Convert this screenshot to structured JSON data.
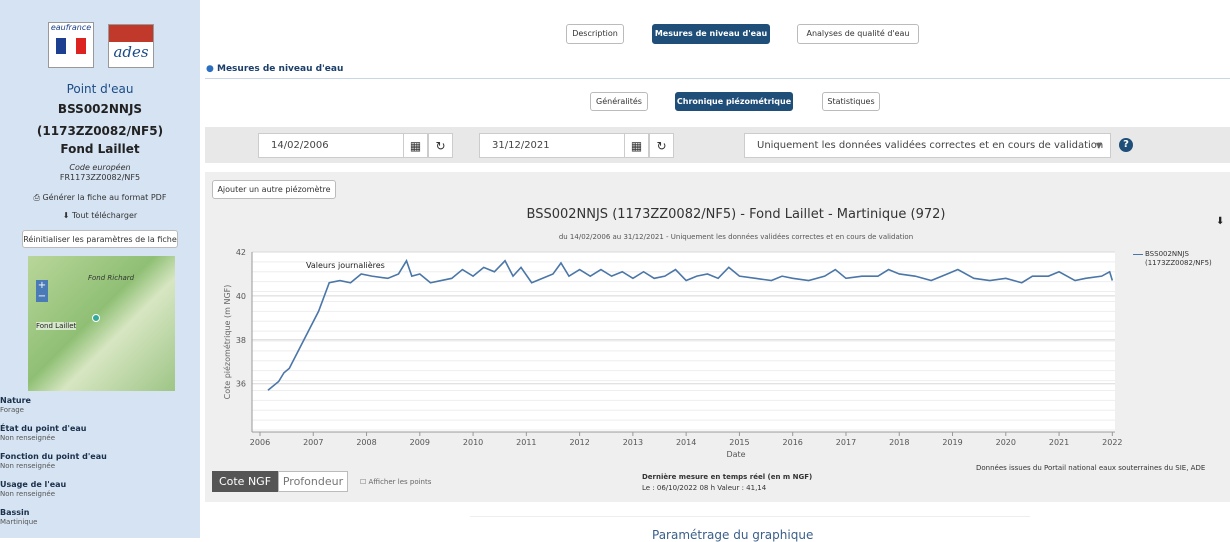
{
  "sidebar": {
    "logo_left": "eaufrance",
    "logo_right": "ades",
    "heading": "Point d'eau",
    "code": "BSS002NNJS",
    "code_alt": "(1173ZZ0082/NF5)",
    "name": "Fond Laillet",
    "euro_label": "Code européen",
    "euro_code": "FR1173ZZ0082/NF5",
    "pdf": "Générer la fiche au format PDF",
    "download": "Tout télécharger",
    "reset": "Réinitialiser les paramètres de la fiche",
    "map_labels": [
      "Fond Richard",
      "Fond Laillet"
    ],
    "properties": [
      {
        "label": "Nature",
        "value": "Forage"
      },
      {
        "label": "État du point d'eau",
        "value": "Non renseignée"
      },
      {
        "label": "Fonction du point d'eau",
        "value": "Non renseignée"
      },
      {
        "label": "Usage de l'eau",
        "value": "Non renseignée"
      },
      {
        "label": "Bassin",
        "value": "Martinique"
      }
    ]
  },
  "tabs": [
    "Description",
    "Mesures de niveau d'eau",
    "Analyses de qualité d'eau"
  ],
  "section": "Mesures de niveau d'eau",
  "subtabs": [
    "Généralités",
    "Chronique piézométrique",
    "Statistiques"
  ],
  "filters": {
    "start": "14/02/2006",
    "end": "31/12/2021",
    "validation": "Uniquement les données validées correctes et en cours de validation"
  },
  "add_button": "Ajouter un autre piézomètre",
  "chart_data": {
    "type": "line",
    "title": "BSS002NNJS (1173ZZ0082/NF5) - Fond Laillet - Martinique (972)",
    "subtitle": "du 14/02/2006 au 31/12/2021 - Uniquement les données validées correctes et en cours de validation",
    "x_label": "Date",
    "y_label": "Cote piézométrique (m NGF)",
    "annotation": "Valeurs journalières",
    "xlim": [
      2005.85,
      2022.05
    ],
    "xticks": [
      2006,
      2007,
      2008,
      2009,
      2010,
      2011,
      2012,
      2013,
      2014,
      2015,
      2016,
      2017,
      2018,
      2019,
      2020,
      2021,
      2022
    ],
    "ylim": [
      33.8,
      42
    ],
    "yticks": [
      36,
      38,
      40,
      42
    ],
    "grid": true,
    "series": [
      {
        "name": "BSS002NNJS (1173ZZ0082/NF5)",
        "color": "#4a76a8",
        "x": [
          2006.15,
          2006.35,
          2006.45,
          2006.55,
          2007.1,
          2007.3,
          2007.5,
          2007.7,
          2007.9,
          2008.1,
          2008.4,
          2008.6,
          2008.75,
          2008.85,
          2009.0,
          2009.2,
          2009.4,
          2009.6,
          2009.8,
          2010.0,
          2010.2,
          2010.4,
          2010.6,
          2010.75,
          2010.9,
          2011.1,
          2011.3,
          2011.5,
          2011.65,
          2011.8,
          2012.0,
          2012.2,
          2012.4,
          2012.6,
          2012.8,
          2013.0,
          2013.2,
          2013.4,
          2013.6,
          2013.8,
          2014.0,
          2014.2,
          2014.4,
          2014.6,
          2014.8,
          2015.0,
          2015.3,
          2015.6,
          2015.8,
          2016.0,
          2016.3,
          2016.6,
          2016.8,
          2017.0,
          2017.3,
          2017.6,
          2017.8,
          2018.0,
          2018.3,
          2018.6,
          2018.9,
          2019.1,
          2019.4,
          2019.7,
          2020.0,
          2020.3,
          2020.5,
          2020.8,
          2021.0,
          2021.3,
          2021.5,
          2021.8,
          2021.95,
          2022.0
        ],
        "values": [
          35.7,
          36.1,
          36.5,
          36.7,
          39.3,
          40.6,
          40.7,
          40.6,
          41.0,
          40.9,
          40.8,
          41.0,
          41.6,
          40.9,
          41.0,
          40.6,
          40.7,
          40.8,
          41.2,
          40.9,
          41.3,
          41.1,
          41.6,
          40.9,
          41.3,
          40.6,
          40.8,
          41.0,
          41.5,
          40.9,
          41.2,
          40.9,
          41.2,
          40.9,
          41.1,
          40.8,
          41.1,
          40.8,
          40.9,
          41.2,
          40.7,
          40.9,
          41.0,
          40.8,
          41.3,
          40.9,
          40.8,
          40.7,
          40.9,
          40.8,
          40.7,
          40.9,
          41.2,
          40.8,
          40.9,
          40.9,
          41.2,
          41.0,
          40.9,
          40.7,
          41.0,
          41.2,
          40.8,
          40.7,
          40.8,
          40.6,
          40.9,
          40.9,
          41.1,
          40.7,
          40.8,
          40.9,
          41.1,
          40.7
        ]
      }
    ]
  },
  "toggle": [
    "Cote NGF",
    "Profondeur"
  ],
  "show_points": "Afficher les points",
  "last_measure": {
    "title": "Dernière mesure en temps réel (en m NGF)",
    "detail": "Le : 06/10/2022 08 h Valeur : 41,14"
  },
  "source": "Données issues du Portail national eaux souterraines du SIE, ADE",
  "settings_title": "Paramétrage du graphique"
}
